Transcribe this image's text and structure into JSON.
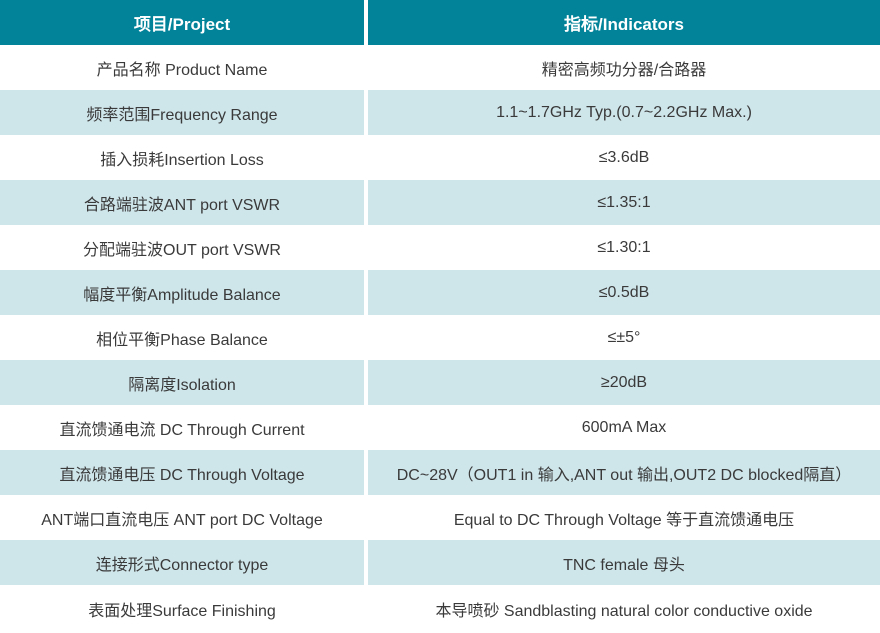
{
  "colors": {
    "header_bg": "#02839a",
    "header_text": "#ffffff",
    "alt_row_bg": "#cee5ea",
    "row_bg": "#ffffff",
    "body_text": "#3a3a3a",
    "divider": "#ffffff"
  },
  "table": {
    "header": {
      "project": "项目/Project",
      "indicator": "指标/Indicators"
    },
    "rows": [
      {
        "project": "产品名称 Product Name",
        "indicator": "精密高频功分器/合路器"
      },
      {
        "project": "频率范围Frequency Range",
        "indicator": "1.1~1.7GHz Typ.(0.7~2.2GHz Max.)"
      },
      {
        "project": "插入损耗Insertion Loss",
        "indicator": "≤3.6dB"
      },
      {
        "project": "合路端驻波ANT port VSWR",
        "indicator": "≤1.35:1"
      },
      {
        "project": "分配端驻波OUT port VSWR",
        "indicator": "≤1.30:1"
      },
      {
        "project": "幅度平衡Amplitude Balance",
        "indicator": "≤0.5dB"
      },
      {
        "project": "相位平衡Phase Balance",
        "indicator": "≤±5°"
      },
      {
        "project": "隔离度Isolation",
        "indicator": "≥20dB"
      },
      {
        "project": "直流馈通电流 DC Through Current",
        "indicator": "600mA Max"
      },
      {
        "project": "直流馈通电压 DC Through Voltage",
        "indicator": "DC~28V（OUT1 in 输入,ANT out 输出,OUT2 DC blocked隔直）"
      },
      {
        "project": "ANT端口直流电压 ANT port DC Voltage",
        "indicator": "Equal to DC Through Voltage 等于直流馈通电压"
      },
      {
        "project": "连接形式Connector type",
        "indicator": "TNC female 母头"
      },
      {
        "project": "表面处理Surface Finishing",
        "indicator": "本导喷砂 Sandblasting natural color conductive oxide"
      }
    ]
  }
}
